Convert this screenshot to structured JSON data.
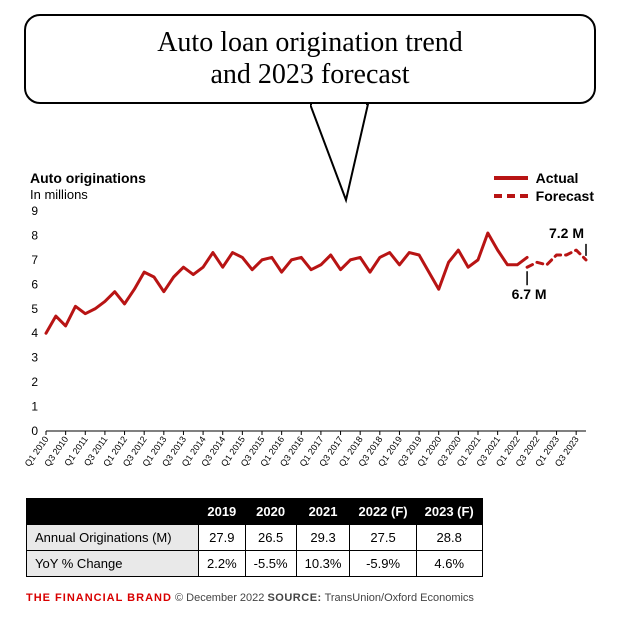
{
  "title": {
    "line1": "Auto loan origination trend",
    "line2": "and 2023 forecast"
  },
  "axis": {
    "title": "Auto originations",
    "subtitle": "In millions"
  },
  "legend": {
    "actual": "Actual",
    "forecast": "Forecast"
  },
  "chart": {
    "type": "line",
    "ylim": [
      0,
      9
    ],
    "ytick_step": 1,
    "x_labels": [
      "Q1 2010",
      "Q3 2010",
      "Q1 2011",
      "Q3 2011",
      "Q1 2012",
      "Q3 2012",
      "Q1 2013",
      "Q3 2013",
      "Q1 2014",
      "Q3 2014",
      "Q1 2015",
      "Q3 2015",
      "Q1 2016",
      "Q3 2016",
      "Q1 2017",
      "Q3 2017",
      "Q1 2018",
      "Q3 2018",
      "Q1 2019",
      "Q3 2019",
      "Q1 2020",
      "Q3 2020",
      "Q1 2021",
      "Q3 2021",
      "Q1 2022",
      "Q3 2022",
      "Q1 2023",
      "Q3 2023"
    ],
    "actual": [
      4.0,
      4.7,
      4.3,
      5.1,
      4.8,
      5.0,
      5.3,
      5.7,
      5.2,
      5.8,
      6.5,
      6.3,
      5.7,
      6.3,
      6.7,
      6.4,
      6.7,
      7.3,
      6.7,
      7.3,
      7.1,
      6.6,
      7.0,
      7.1,
      6.5,
      7.0,
      7.1,
      6.6,
      6.8,
      7.2,
      6.6,
      7.0,
      7.1,
      6.5,
      7.1,
      7.3,
      6.8,
      7.3,
      7.2,
      6.5,
      5.8,
      6.9,
      7.4,
      6.7,
      7.0,
      8.1,
      7.4,
      6.8,
      6.8,
      7.1
    ],
    "forecast": [
      6.7,
      6.9,
      6.8,
      7.2,
      7.2,
      7.4,
      7.0
    ],
    "actual_color": "#b81414",
    "forecast_color": "#b81414",
    "line_width": 3,
    "background": "#ffffff",
    "annotations": {
      "start": "6.7 M",
      "end": "7.2 M"
    }
  },
  "table": {
    "columns": [
      "2019",
      "2020",
      "2021",
      "2022 (F)",
      "2023 (F)"
    ],
    "rows": [
      {
        "label": "Annual Originations (M)",
        "values": [
          "27.9",
          "26.5",
          "29.3",
          "27.5",
          "28.8"
        ]
      },
      {
        "label": "YoY % Change",
        "values": [
          "2.2%",
          "-5.5%",
          "10.3%",
          "-5.9%",
          "4.6%"
        ]
      }
    ]
  },
  "footer": {
    "brand": "THE FINANCIAL BRAND",
    "copyright": "© December 2022",
    "source_label": "SOURCE:",
    "source": "TransUnion/Oxford Economics"
  }
}
